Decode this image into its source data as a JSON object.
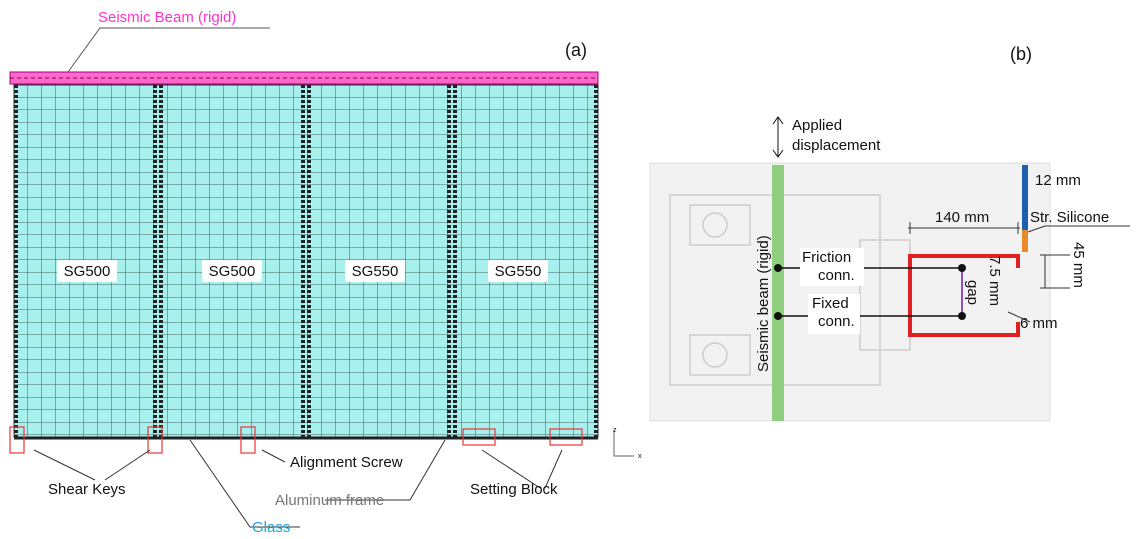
{
  "panel_a": {
    "label": "(a)",
    "beam_label": "Seismic Beam (rigid)",
    "panels": [
      "SG500",
      "SG500",
      "SG550",
      "SG550"
    ],
    "callouts": {
      "shear_keys": "Shear Keys",
      "alignment_screw": "Alignment Screw",
      "setting_block": "Setting Block",
      "aluminum_frame": "Aluminum frame",
      "glass": "Glass"
    },
    "axes": {
      "z": "z",
      "x": "x"
    }
  },
  "panel_b": {
    "label": "(b)",
    "applied_displacement": [
      "Applied",
      "displacement"
    ],
    "beam_label": "Seismic beam (rigid)",
    "thickness": "12 mm",
    "width": "140 mm",
    "silicone": "Str. Silicone",
    "height": "45 mm",
    "gap": [
      "7.5 mm",
      "gap"
    ],
    "wall": "6 mm",
    "friction": [
      "Friction",
      "conn."
    ],
    "fixed": [
      "Fixed",
      "conn."
    ]
  }
}
